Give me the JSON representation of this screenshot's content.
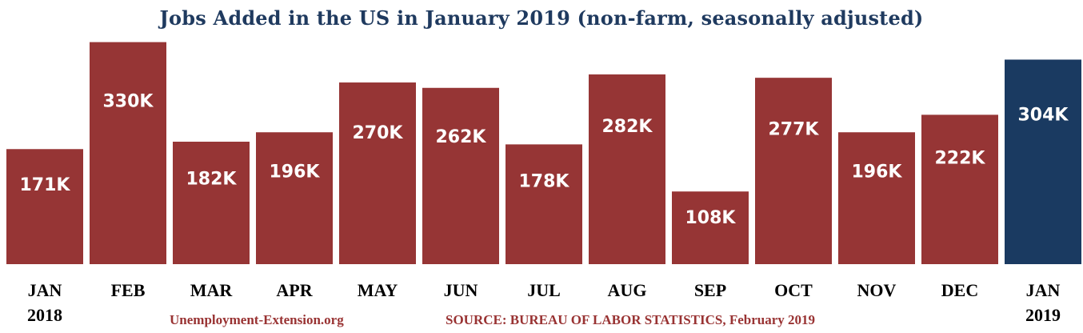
{
  "chart_data": {
    "type": "bar",
    "title": "Jobs Added in the US in January 2019 (non-farm, seasonally adjusted)",
    "categories": [
      [
        "JAN",
        "2018"
      ],
      [
        "FEB"
      ],
      [
        "MAR"
      ],
      [
        "APR"
      ],
      [
        "MAY"
      ],
      [
        "JUN"
      ],
      [
        "JUL"
      ],
      [
        "AUG"
      ],
      [
        "SEP"
      ],
      [
        "OCT"
      ],
      [
        "NOV"
      ],
      [
        "DEC"
      ],
      [
        "JAN",
        "2019"
      ]
    ],
    "values": [
      171,
      330,
      182,
      196,
      270,
      262,
      178,
      282,
      108,
      277,
      196,
      222,
      304
    ],
    "labels": [
      "171K",
      "330K",
      "182K",
      "196K",
      "270K",
      "262K",
      "178K",
      "282K",
      "108K",
      "277K",
      "196K",
      "222K",
      "304K"
    ],
    "bar_color": "#963535",
    "highlight_color": "#1a3a61",
    "highlight_index": 12,
    "ylim": [
      0,
      345
    ],
    "grid": false,
    "legend": "none"
  },
  "footer": {
    "site": "Unemployment-Extension.org",
    "source": "SOURCE: BUREAU OF LABOR STATISTICS, February 2019"
  }
}
